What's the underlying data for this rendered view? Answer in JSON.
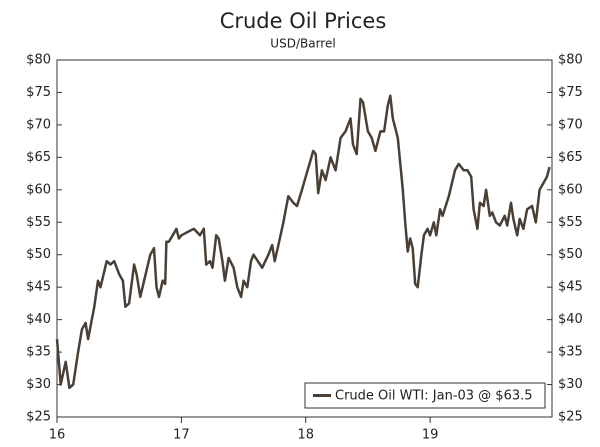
{
  "chart_data": {
    "type": "line",
    "title": "Crude Oil Prices",
    "subtitle": "USD/Barrel",
    "x": [
      16.0,
      16.03,
      16.07,
      16.1,
      16.13,
      16.17,
      16.2,
      16.23,
      16.25,
      16.28,
      16.3,
      16.33,
      16.35,
      16.4,
      16.43,
      16.46,
      16.5,
      16.53,
      16.55,
      16.58,
      16.62,
      16.64,
      16.67,
      16.7,
      16.75,
      16.78,
      16.8,
      16.82,
      16.85,
      16.87,
      16.88,
      16.9,
      16.93,
      16.96,
      16.98,
      17.0,
      17.05,
      17.1,
      17.15,
      17.18,
      17.2,
      17.23,
      17.25,
      17.28,
      17.3,
      17.33,
      17.35,
      17.38,
      17.42,
      17.45,
      17.48,
      17.5,
      17.53,
      17.56,
      17.58,
      17.65,
      17.7,
      17.73,
      17.75,
      17.78,
      17.82,
      17.84,
      17.86,
      17.9,
      17.93,
      17.97,
      18.0,
      18.03,
      18.06,
      18.08,
      18.1,
      18.13,
      18.16,
      18.2,
      18.24,
      18.28,
      18.32,
      18.36,
      18.38,
      18.41,
      18.44,
      18.46,
      18.5,
      18.53,
      18.56,
      18.6,
      18.63,
      18.66,
      18.68,
      18.7,
      18.74,
      18.78,
      18.8,
      18.82,
      18.84,
      18.86,
      18.88,
      18.9,
      18.93,
      18.95,
      18.98,
      19.0,
      19.03,
      19.05,
      19.08,
      19.1,
      19.15,
      19.2,
      19.23,
      19.27,
      19.3,
      19.33,
      19.35,
      19.38,
      19.4,
      19.43,
      19.45,
      19.48,
      19.5,
      19.53,
      19.56,
      19.6,
      19.62,
      19.65,
      19.67,
      19.7,
      19.72,
      19.75,
      19.78,
      19.82,
      19.85,
      19.88,
      19.91,
      19.94,
      19.96
    ],
    "series": [
      {
        "name": "Crude Oil WTI: Jan-03 @ $63.5",
        "color": "#4a3f35",
        "values": [
          37,
          30,
          33.5,
          29.5,
          30,
          35,
          38.5,
          39.5,
          37,
          40,
          42,
          46,
          45,
          49,
          48.5,
          49,
          47,
          46,
          42,
          42.5,
          48.5,
          47,
          43.5,
          46,
          50,
          51,
          45,
          43.5,
          46,
          45.5,
          52,
          52,
          53,
          54,
          52.5,
          53,
          53.5,
          54,
          53,
          54,
          48.5,
          49,
          48,
          53,
          52.5,
          49,
          46,
          49.5,
          48,
          45,
          43.5,
          46,
          45,
          49,
          50,
          48,
          50,
          51.5,
          49,
          51.5,
          55,
          57,
          59,
          58,
          57.5,
          60,
          62,
          64,
          66,
          65.5,
          59.5,
          63,
          61.5,
          65,
          63,
          68,
          69,
          71,
          67,
          65.5,
          74,
          73.5,
          69,
          68,
          66,
          69,
          69,
          73,
          74.5,
          71,
          68,
          60,
          55,
          50.5,
          52.5,
          51,
          45.5,
          45,
          50,
          53,
          54,
          53,
          55,
          53,
          57,
          56,
          59,
          63,
          64,
          63,
          63,
          62,
          57,
          54,
          58,
          57.5,
          60,
          56,
          56.5,
          55,
          54.5,
          56,
          54.5,
          58,
          55.5,
          53,
          55.5,
          54,
          57,
          57.5,
          55,
          60,
          61,
          62,
          63.5
        ]
      }
    ],
    "xlim": [
      16,
      19.98
    ],
    "xticks": [
      16,
      17,
      18,
      19
    ],
    "ylim": [
      25,
      80
    ],
    "yticks": [
      {
        "value": 25,
        "label": "$25"
      },
      {
        "value": 30,
        "label": "$30"
      },
      {
        "value": 35,
        "label": "$35"
      },
      {
        "value": 40,
        "label": "$40"
      },
      {
        "value": 45,
        "label": "$45"
      },
      {
        "value": 50,
        "label": "$50"
      },
      {
        "value": 55,
        "label": "$55"
      },
      {
        "value": 60,
        "label": "$60"
      },
      {
        "value": 65,
        "label": "$65"
      },
      {
        "value": 70,
        "label": "$70"
      },
      {
        "value": 75,
        "label": "$75"
      },
      {
        "value": 80,
        "label": "$80"
      }
    ],
    "legend": "lower right"
  }
}
